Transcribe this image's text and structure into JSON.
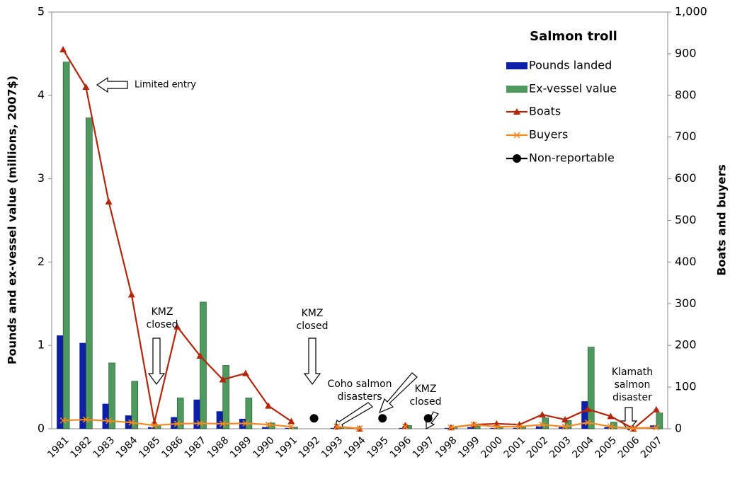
{
  "chart_data": {
    "type": "combo",
    "legend_title": "Salmon troll",
    "ylabel": "Pounds and ex-vessel value (millions, 2007$)",
    "y2label": "Boats and buyers",
    "categories": [
      "1981",
      "1982",
      "1983",
      "1984",
      "1985",
      "1986",
      "1987",
      "1988",
      "1989",
      "1990",
      "1991",
      "1992",
      "1993",
      "1994",
      "1995",
      "1996",
      "1997",
      "1998",
      "1999",
      "2000",
      "2001",
      "2002",
      "2003",
      "2004",
      "2005",
      "2006",
      "2007"
    ],
    "ylim": [
      0,
      5
    ],
    "yticks": [
      0,
      1,
      2,
      3,
      4,
      5
    ],
    "y2lim": [
      0,
      1000
    ],
    "y2ticks": [
      0,
      100,
      200,
      300,
      400,
      500,
      600,
      700,
      800,
      900,
      {
        "value": 1000,
        "label": "1,000"
      }
    ],
    "series": [
      {
        "name": "Pounds landed",
        "type": "bar",
        "color": "#0d1fa8",
        "values": [
          1.12,
          1.03,
          0.3,
          0.16,
          0.02,
          0.14,
          0.35,
          0.21,
          0.12,
          0.02,
          0.01,
          null,
          0.01,
          0,
          null,
          0.01,
          null,
          0.01,
          0.02,
          0.01,
          0.01,
          0.03,
          0.02,
          0.33,
          0.02,
          0,
          0.04
        ]
      },
      {
        "name": "Ex-vessel value",
        "type": "bar",
        "color": "#4e9a5e",
        "values": [
          4.4,
          3.73,
          0.79,
          0.57,
          0.05,
          0.37,
          1.52,
          0.76,
          0.37,
          0.07,
          0.02,
          null,
          0.02,
          0,
          null,
          0.04,
          null,
          0.02,
          0.04,
          0.03,
          0.03,
          0.13,
          0.1,
          0.98,
          0.08,
          0,
          0.19
        ]
      },
      {
        "name": "Boats",
        "type": "line",
        "marker": "triangle",
        "axis": "y2",
        "color": "#b3260c",
        "values": [
          910,
          820,
          545,
          322,
          15,
          245,
          175,
          118,
          133,
          55,
          18,
          null,
          5,
          0,
          null,
          8,
          null,
          3,
          10,
          12,
          10,
          34,
          22,
          47,
          30,
          0,
          46
        ]
      },
      {
        "name": "Buyers",
        "type": "line",
        "marker": "x",
        "axis": "y2",
        "color": "#f5891f",
        "values": [
          20,
          22,
          19,
          15,
          8,
          12,
          13,
          12,
          13,
          10,
          5,
          null,
          5,
          1,
          null,
          5,
          null,
          3,
          10,
          5,
          5,
          10,
          5,
          15,
          5,
          1,
          3
        ]
      },
      {
        "name": "Non-reportable",
        "type": "points",
        "marker": "circle",
        "axis": "y2",
        "color": "#000000",
        "values": [
          null,
          null,
          null,
          null,
          null,
          null,
          null,
          null,
          null,
          null,
          null,
          25,
          null,
          null,
          25,
          null,
          25,
          null,
          null,
          null,
          null,
          null,
          null,
          null,
          null,
          null,
          null
        ]
      }
    ],
    "annotations": [
      {
        "text": [
          "Limited entry"
        ]
      },
      {
        "text": [
          "KMZ",
          "closed"
        ]
      },
      {
        "text": [
          "KMZ",
          "closed"
        ]
      },
      {
        "text": [
          "Coho salmon",
          "disasters"
        ]
      },
      {
        "text": [
          "KMZ",
          "closed"
        ]
      },
      {
        "text": [
          "Klamath",
          "salmon",
          "disaster"
        ]
      }
    ]
  }
}
